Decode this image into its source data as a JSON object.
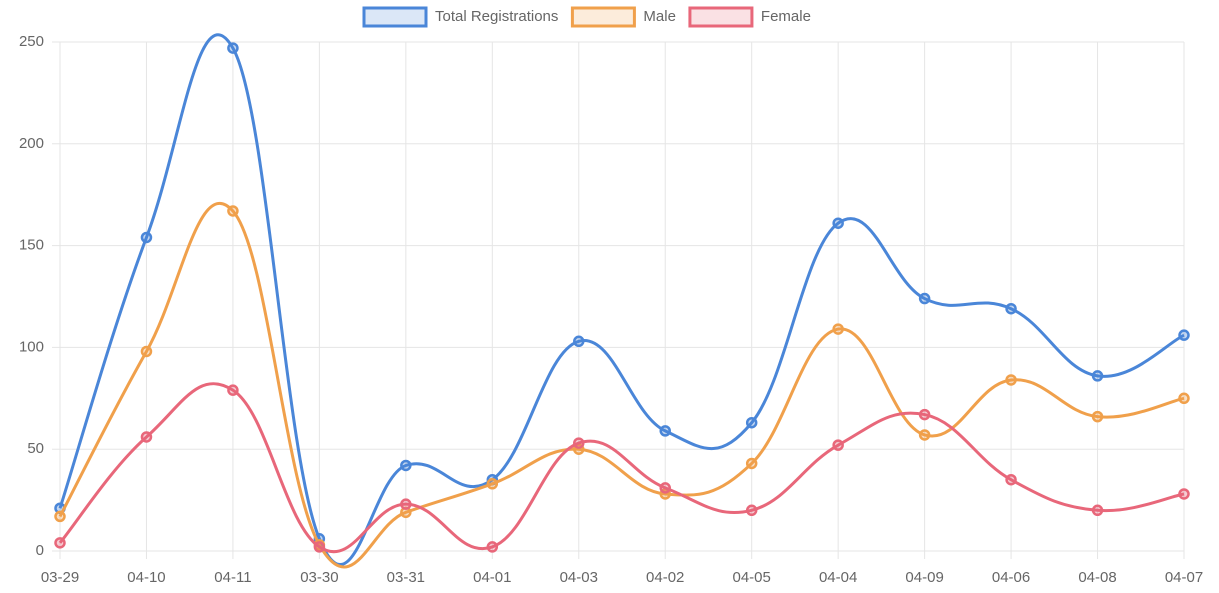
{
  "chart_data": {
    "type": "line",
    "categories": [
      "03-29",
      "04-10",
      "04-11",
      "03-30",
      "03-31",
      "04-01",
      "04-03",
      "04-02",
      "04-05",
      "04-04",
      "04-09",
      "04-06",
      "04-08",
      "04-07"
    ],
    "series": [
      {
        "name": "Total Registrations",
        "color": "#4a86d8",
        "values": [
          21,
          154,
          247,
          6,
          42,
          35,
          103,
          59,
          63,
          161,
          124,
          119,
          86,
          106
        ]
      },
      {
        "name": "Male",
        "color": "#f0a04b",
        "values": [
          17,
          98,
          167,
          3,
          19,
          33,
          50,
          28,
          43,
          109,
          57,
          84,
          66,
          75
        ]
      },
      {
        "name": "Female",
        "color": "#e8677a",
        "values": [
          4,
          56,
          79,
          2,
          23,
          2,
          53,
          31,
          20,
          52,
          67,
          35,
          20,
          28
        ]
      }
    ],
    "ylim": [
      0,
      250
    ],
    "yticks": [
      0,
      50,
      100,
      150,
      200,
      250
    ],
    "grid": true,
    "legend": "top"
  }
}
